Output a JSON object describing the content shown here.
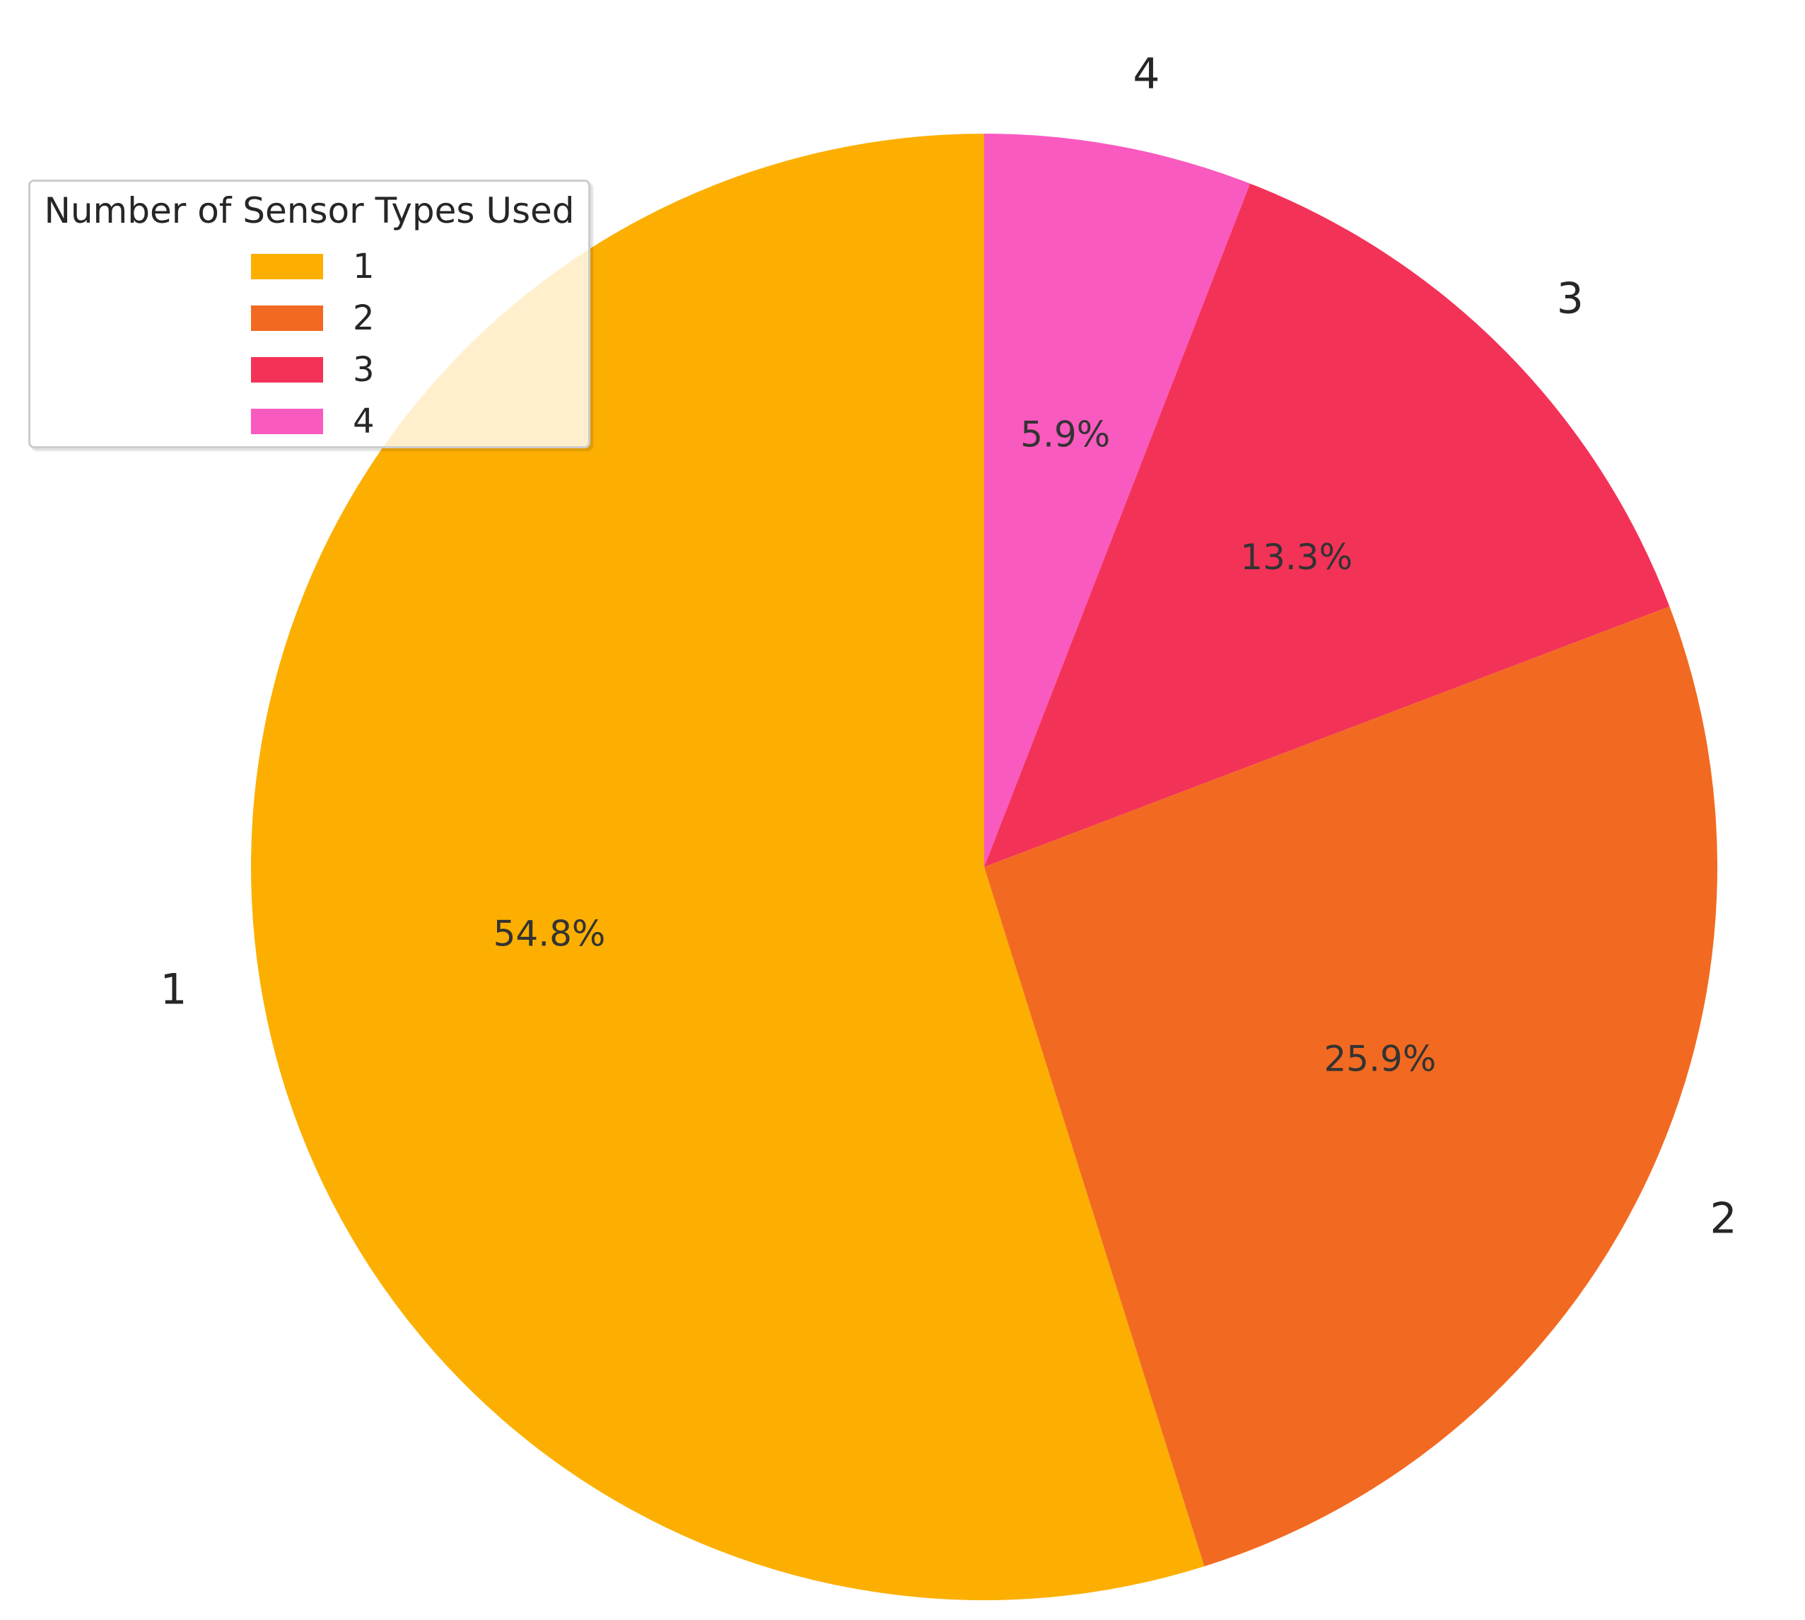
{
  "chart_data": {
    "type": "pie",
    "categories": [
      "1",
      "2",
      "3",
      "4"
    ],
    "values": [
      54.8,
      25.9,
      13.3,
      5.9
    ],
    "percent_labels": [
      "54.8%",
      "25.9%",
      "13.3%",
      "5.9%"
    ],
    "colors": [
      "#FCAF01",
      "#F26A21",
      "#F33258",
      "#F95ABF"
    ],
    "start_angle": "90 degrees (top)",
    "direction": "counterclockwise",
    "legend": {
      "title": "Number of Sensor Types Used",
      "placement": "upper-left",
      "entries": [
        "1",
        "2",
        "3",
        "4"
      ]
    }
  }
}
